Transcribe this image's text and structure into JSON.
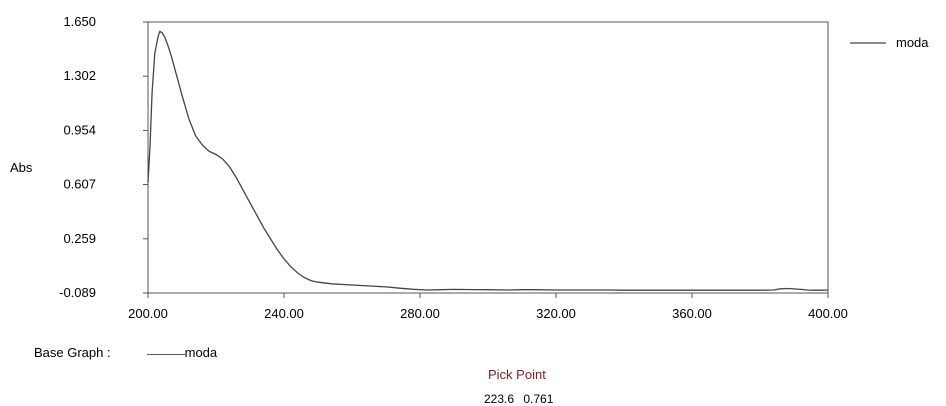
{
  "chart_data": {
    "type": "line",
    "xlabel": "",
    "ylabel": "Abs",
    "xlim": [
      200,
      400
    ],
    "ylim": [
      -0.089,
      1.65
    ],
    "x_ticks": [
      "200.00",
      "240.00",
      "280.00",
      "320.00",
      "360.00",
      "400.00"
    ],
    "y_ticks": [
      "1.650",
      "1.302",
      "0.954",
      "0.607",
      "0.259",
      "-0.089"
    ],
    "legend_position": "top-right, outside plot",
    "series": [
      {
        "name": "moda",
        "color": "#444444",
        "x": [
          200,
          200.6,
          201.2,
          202,
          203,
          203.5,
          204.2,
          205,
          206,
          207,
          208,
          210,
          212,
          214,
          216,
          218,
          220,
          222,
          224,
          226,
          228,
          230,
          232,
          234,
          236,
          238,
          240,
          242,
          244,
          246,
          248,
          250,
          254,
          258,
          262,
          266,
          270,
          274,
          278,
          282,
          286,
          290,
          296,
          300,
          306,
          310,
          314,
          320,
          326,
          330,
          336,
          340,
          346,
          350,
          356,
          360,
          366,
          370,
          376,
          380,
          384,
          386,
          388,
          390,
          392,
          394,
          396,
          398,
          400
        ],
        "y": [
          0.62,
          0.85,
          1.2,
          1.45,
          1.56,
          1.59,
          1.58,
          1.55,
          1.49,
          1.42,
          1.34,
          1.18,
          1.03,
          0.92,
          0.86,
          0.82,
          0.8,
          0.77,
          0.72,
          0.65,
          0.57,
          0.49,
          0.41,
          0.33,
          0.26,
          0.19,
          0.13,
          0.08,
          0.04,
          0.01,
          -0.01,
          -0.02,
          -0.03,
          -0.035,
          -0.04,
          -0.045,
          -0.05,
          -0.058,
          -0.065,
          -0.07,
          -0.068,
          -0.066,
          -0.067,
          -0.068,
          -0.07,
          -0.068,
          -0.068,
          -0.07,
          -0.07,
          -0.07,
          -0.07,
          -0.071,
          -0.071,
          -0.071,
          -0.071,
          -0.071,
          -0.071,
          -0.071,
          -0.071,
          -0.071,
          -0.07,
          -0.062,
          -0.06,
          -0.063,
          -0.066,
          -0.07,
          -0.071,
          -0.071,
          -0.07
        ]
      }
    ]
  },
  "footer": {
    "base_graph_label": "Base Graph :",
    "base_graph_name": "moda",
    "pick_point_title": "Pick Point",
    "pick_point_x": "223.6",
    "pick_point_y": "0.761"
  }
}
